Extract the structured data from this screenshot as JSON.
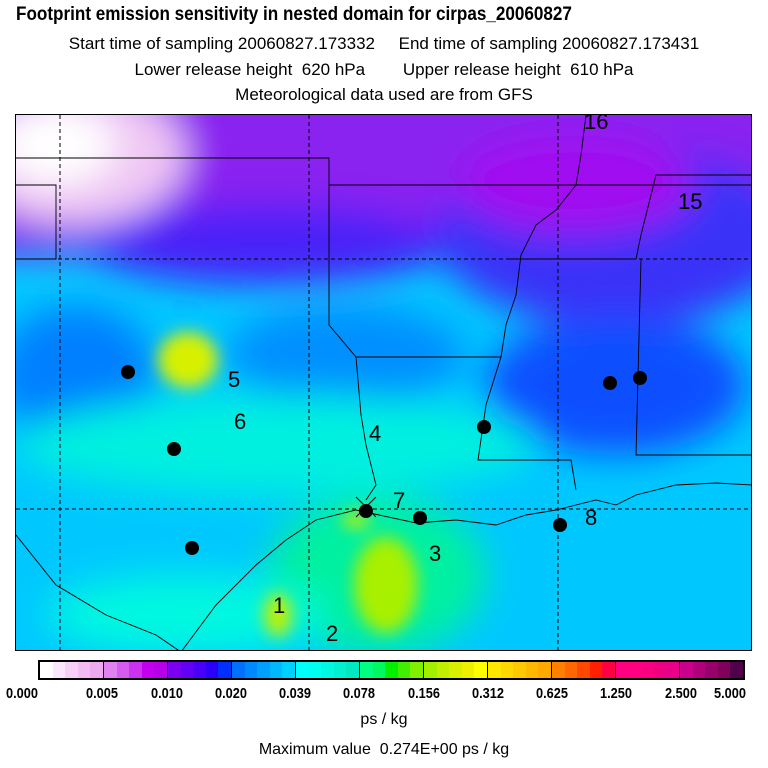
{
  "header": {
    "title": "Footprint emission sensitivity in nested domain for cirpas_20060827",
    "line2": "Start time of sampling 20060827.173332     End time of sampling 20060827.173431",
    "line3": "Lower release height  620 hPa        Upper release height  610 hPa",
    "line4": "Meteorological data used are from GFS"
  },
  "map": {
    "labels": [
      {
        "text": "16"
      },
      {
        "text": "15"
      },
      {
        "text": "5"
      },
      {
        "text": "6"
      },
      {
        "text": "4"
      },
      {
        "text": "7"
      },
      {
        "text": "3"
      },
      {
        "text": "8"
      },
      {
        "text": "1"
      },
      {
        "text": "2"
      }
    ]
  },
  "colorbar": {
    "ticks": [
      "0.000",
      "0.005",
      "0.010",
      "0.020",
      "0.039",
      "0.078",
      "0.156",
      "0.312",
      "0.625",
      "1.250",
      "2.500",
      "5.000"
    ],
    "segments": [
      [
        "#ffffff",
        "#fbe6fb",
        "#f6d0f6",
        "#f2bcf2",
        "#eeaaee"
      ],
      [
        "#e183ef",
        "#d65cf0",
        "#cc33f0",
        "#c200f0",
        "#b800e8"
      ],
      [
        "#7a00f0",
        "#6400f5",
        "#4a00f8",
        "#2a00fa",
        "#0030ff"
      ],
      [
        "#0070ff",
        "#0088ff",
        "#00a0ff",
        "#00b8ff",
        "#00d0ff"
      ],
      [
        "#00fff8",
        "#00fff0",
        "#00f8e0",
        "#00f0d0",
        "#00e8c0"
      ],
      [
        "#00ff80",
        "#00f860",
        "#00f000",
        "#40f000",
        "#80f000"
      ],
      [
        "#a0f000",
        "#c0f000",
        "#d8f000",
        "#eef000",
        "#ffff00"
      ],
      [
        "#ffe800",
        "#ffd800",
        "#ffc800",
        "#ffb800",
        "#ffa800"
      ],
      [
        "#ff8000",
        "#ff6800",
        "#ff4800",
        "#ff2000",
        "#ff0040"
      ],
      [
        "#ff0080",
        "#ff0080",
        "#f80080",
        "#f00080",
        "#e80088"
      ],
      [
        "#c8008c",
        "#b0007c",
        "#98006c",
        "#80005c",
        "#50004c"
      ]
    ],
    "unit": "ps / kg",
    "max_text": "Maximum value  0.274E+00 ps / kg"
  }
}
